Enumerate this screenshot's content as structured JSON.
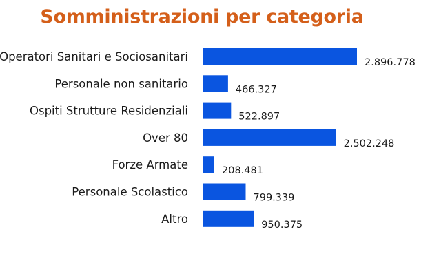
{
  "colors": {
    "title": "#d45f1a",
    "bar": "#0a55e0"
  },
  "chart_data": {
    "type": "bar",
    "orientation": "horizontal",
    "title": "Somministrazioni per categoria",
    "xlabel": "",
    "ylabel": "",
    "categories": [
      "Operatori Sanitari e Sociosanitari",
      "Personale non sanitario",
      "Ospiti Strutture Residenziali",
      "Over 80",
      "Forze Armate",
      "Personale Scolastico",
      "Altro"
    ],
    "values": [
      2896778,
      466327,
      522897,
      2502248,
      208481,
      799339,
      950375
    ],
    "value_labels": [
      "2.896.778",
      "466.327",
      "522.897",
      "2.502.248",
      "208.481",
      "799.339",
      "950.375"
    ],
    "xlim": [
      0,
      2896778
    ],
    "grid": false,
    "legend": "none"
  }
}
